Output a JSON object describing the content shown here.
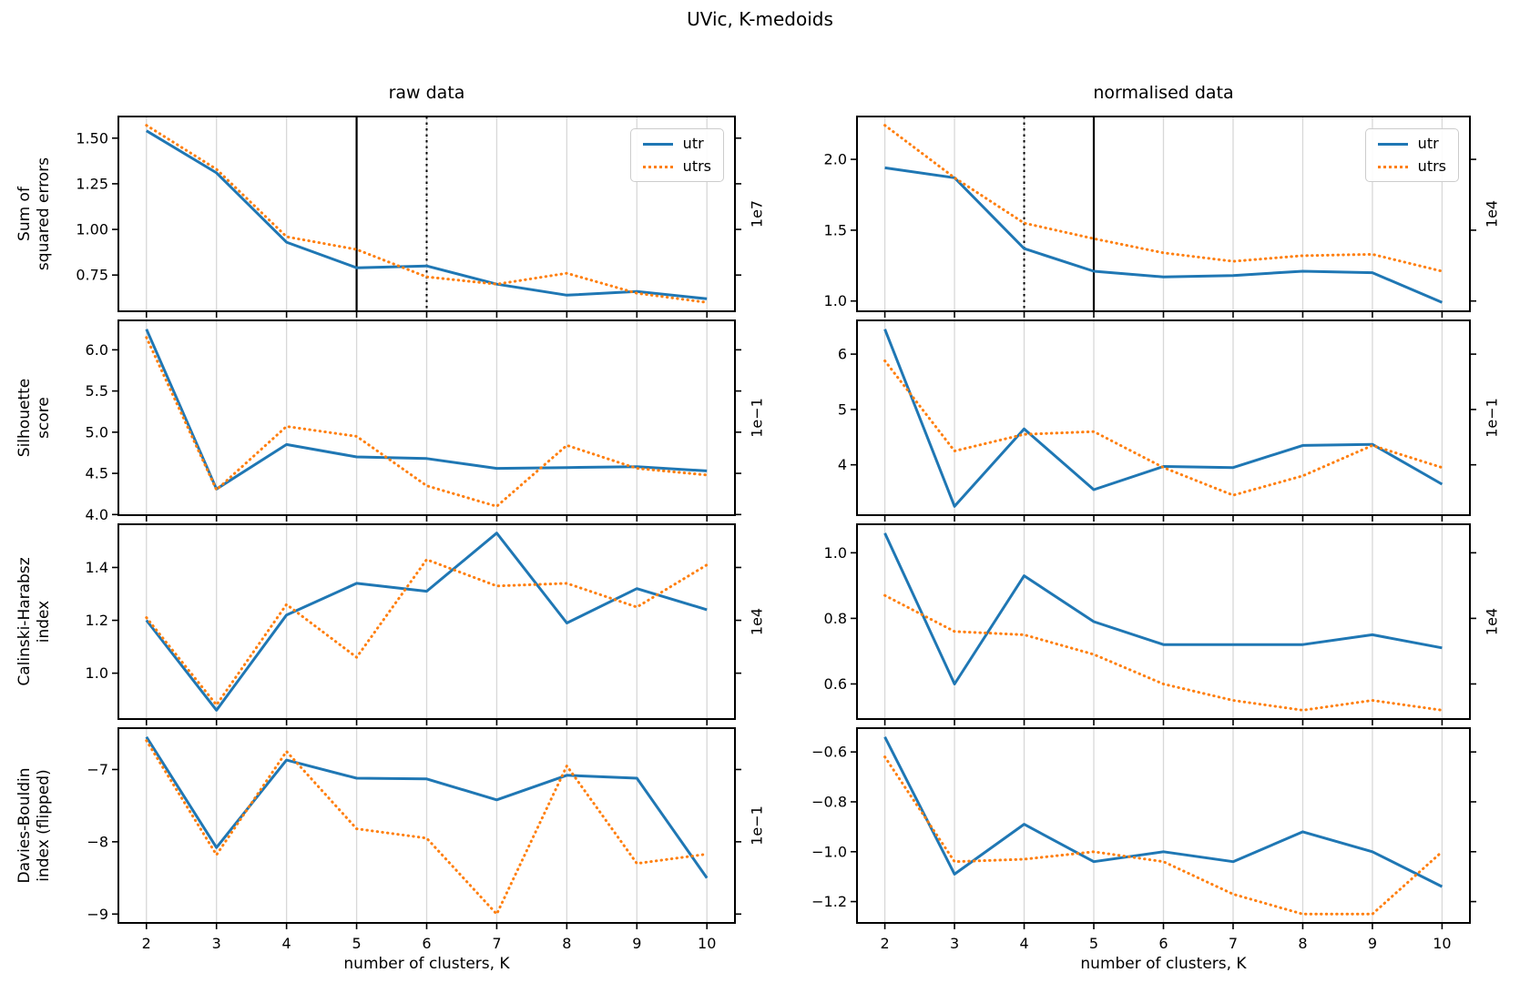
{
  "figure": {
    "suptitle": "UVic, K-medoids"
  },
  "columns": [
    {
      "title": "raw data",
      "xlabel": "number of clusters, K"
    },
    {
      "title": "normalised data",
      "xlabel": "number of clusters, K"
    }
  ],
  "rows": [
    {
      "ylabel_line1": "Sum of",
      "ylabel_line2": "squared errors"
    },
    {
      "ylabel_line1": "Silhouette",
      "ylabel_line2": "score"
    },
    {
      "ylabel_line1": "Calinski-Harabsz",
      "ylabel_line2": "index"
    },
    {
      "ylabel_line1": "Davies-Bouldin",
      "ylabel_line2": "index (flipped)"
    }
  ],
  "legend": {
    "entries": [
      {
        "label": "utr",
        "color": "#1f77b4",
        "style": "solid"
      },
      {
        "label": "utrs",
        "color": "#ff7f0e",
        "style": "dotted"
      }
    ]
  },
  "colors": {
    "utr": "#1f77b4",
    "utrs": "#ff7f0e",
    "grid": "#d8d8d8",
    "spine": "#000000",
    "vline": "#000000"
  },
  "chart_data": [
    {
      "name": "sse-raw",
      "row": 0,
      "col": 0,
      "type": "line",
      "title": "raw data",
      "ylabel": "Sum of squared errors",
      "x": [
        2,
        3,
        4,
        5,
        6,
        7,
        8,
        9,
        10
      ],
      "xlim": [
        1.6,
        10.4
      ],
      "series": [
        {
          "name": "utr",
          "values": [
            1.54,
            1.31,
            0.93,
            0.79,
            0.8,
            0.7,
            0.64,
            0.66,
            0.62
          ]
        },
        {
          "name": "utrs",
          "values": [
            1.57,
            1.33,
            0.96,
            0.89,
            0.74,
            0.7,
            0.76,
            0.65,
            0.6
          ]
        }
      ],
      "yticks": [
        0.75,
        1.0,
        1.25,
        1.5
      ],
      "ytick_labels": [
        "0.75",
        "1.00",
        "1.25",
        "1.50"
      ],
      "ylim": [
        0.5515,
        1.6185
      ],
      "offset_label": "1e7",
      "vlines": [
        {
          "x": 5,
          "style": "solid"
        },
        {
          "x": 6,
          "style": "dotted"
        }
      ],
      "show_legend": true,
      "show_xticklabels": false
    },
    {
      "name": "sse-normalised",
      "row": 0,
      "col": 1,
      "type": "line",
      "title": "normalised data",
      "ylabel": "Sum of squared errors",
      "x": [
        2,
        3,
        4,
        5,
        6,
        7,
        8,
        9,
        10
      ],
      "xlim": [
        1.6,
        10.4
      ],
      "series": [
        {
          "name": "utr",
          "values": [
            1.94,
            1.87,
            1.37,
            1.21,
            1.17,
            1.18,
            1.21,
            1.2,
            0.99
          ]
        },
        {
          "name": "utrs",
          "values": [
            2.24,
            1.87,
            1.55,
            1.44,
            1.34,
            1.28,
            1.32,
            1.33,
            1.21
          ]
        }
      ],
      "yticks": [
        1.0,
        1.5,
        2.0
      ],
      "ytick_labels": [
        "1.0",
        "1.5",
        "2.0"
      ],
      "ylim": [
        0.9275,
        2.3025
      ],
      "offset_label": "1e4",
      "vlines": [
        {
          "x": 4,
          "style": "dotted"
        },
        {
          "x": 5,
          "style": "solid"
        }
      ],
      "show_legend": true,
      "show_xticklabels": false
    },
    {
      "name": "silhouette-raw",
      "row": 1,
      "col": 0,
      "type": "line",
      "ylabel": "Silhouette score",
      "x": [
        2,
        3,
        4,
        5,
        6,
        7,
        8,
        9,
        10
      ],
      "xlim": [
        1.6,
        10.4
      ],
      "series": [
        {
          "name": "utr",
          "values": [
            6.25,
            4.31,
            4.85,
            4.7,
            4.68,
            4.56,
            4.57,
            4.58,
            4.53
          ]
        },
        {
          "name": "utrs",
          "values": [
            6.15,
            4.3,
            5.07,
            4.95,
            4.35,
            4.1,
            4.84,
            4.56,
            4.48
          ]
        }
      ],
      "yticks": [
        4.0,
        4.5,
        5.0,
        5.5,
        6.0
      ],
      "ytick_labels": [
        "4.0",
        "4.5",
        "5.0",
        "5.5",
        "6.0"
      ],
      "ylim": [
        3.9925,
        6.3575
      ],
      "offset_label": "1e−1",
      "vlines": [],
      "show_legend": false,
      "show_xticklabels": false
    },
    {
      "name": "silhouette-normalised",
      "row": 1,
      "col": 1,
      "type": "line",
      "ylabel": "Silhouette score",
      "x": [
        2,
        3,
        4,
        5,
        6,
        7,
        8,
        9,
        10
      ],
      "xlim": [
        1.6,
        10.4
      ],
      "series": [
        {
          "name": "utr",
          "values": [
            6.45,
            3.25,
            4.65,
            3.55,
            3.97,
            3.95,
            4.35,
            4.37,
            3.65
          ]
        },
        {
          "name": "utrs",
          "values": [
            5.88,
            4.25,
            4.55,
            4.6,
            3.95,
            3.45,
            3.8,
            4.35,
            3.95
          ]
        }
      ],
      "yticks": [
        4,
        5,
        6
      ],
      "ytick_labels": [
        "4",
        "5",
        "6"
      ],
      "ylim": [
        3.09,
        6.61
      ],
      "offset_label": "1e−1",
      "vlines": [],
      "show_legend": false,
      "show_xticklabels": false
    },
    {
      "name": "calinski-harabsz-raw",
      "row": 2,
      "col": 0,
      "type": "line",
      "ylabel": "Calinski-Harabsz index",
      "x": [
        2,
        3,
        4,
        5,
        6,
        7,
        8,
        9,
        10
      ],
      "xlim": [
        1.6,
        10.4
      ],
      "series": [
        {
          "name": "utr",
          "values": [
            1.2,
            0.86,
            1.22,
            1.34,
            1.31,
            1.53,
            1.19,
            1.32,
            1.24
          ]
        },
        {
          "name": "utrs",
          "values": [
            1.21,
            0.88,
            1.26,
            1.06,
            1.43,
            1.33,
            1.34,
            1.25,
            1.41
          ]
        }
      ],
      "yticks": [
        1.0,
        1.2,
        1.4
      ],
      "ytick_labels": [
        "1.0",
        "1.2",
        "1.4"
      ],
      "ylim": [
        0.8265,
        1.5635
      ],
      "offset_label": "1e4",
      "vlines": [],
      "show_legend": false,
      "show_xticklabels": false
    },
    {
      "name": "calinski-harabsz-normalised",
      "row": 2,
      "col": 1,
      "type": "line",
      "ylabel": "Calinski-Harabsz index",
      "x": [
        2,
        3,
        4,
        5,
        6,
        7,
        8,
        9,
        10
      ],
      "xlim": [
        1.6,
        10.4
      ],
      "series": [
        {
          "name": "utr",
          "values": [
            1.06,
            0.6,
            0.93,
            0.79,
            0.72,
            0.72,
            0.72,
            0.75,
            0.71
          ]
        },
        {
          "name": "utrs",
          "values": [
            0.87,
            0.76,
            0.75,
            0.69,
            0.6,
            0.55,
            0.52,
            0.55,
            0.52
          ]
        }
      ],
      "yticks": [
        0.6,
        0.8,
        1.0
      ],
      "ytick_labels": [
        "0.6",
        "0.8",
        "1.0"
      ],
      "ylim": [
        0.493,
        1.087
      ],
      "offset_label": "1e4",
      "vlines": [],
      "show_legend": false,
      "show_xticklabels": false
    },
    {
      "name": "davies-bouldin-raw",
      "row": 3,
      "col": 0,
      "type": "line",
      "ylabel": "Davies-Bouldin index (flipped)",
      "x": [
        2,
        3,
        4,
        5,
        6,
        7,
        8,
        9,
        10
      ],
      "xlim": [
        1.6,
        10.4
      ],
      "series": [
        {
          "name": "utr",
          "values": [
            -6.55,
            -8.08,
            -6.87,
            -7.12,
            -7.13,
            -7.42,
            -7.08,
            -7.12,
            -8.5
          ]
        },
        {
          "name": "utrs",
          "values": [
            -6.6,
            -8.18,
            -6.75,
            -7.82,
            -7.95,
            -9.0,
            -6.95,
            -8.3,
            -8.17
          ]
        }
      ],
      "yticks": [
        -9,
        -8,
        -7
      ],
      "ytick_labels": [
        "−9",
        "−8",
        "−7"
      ],
      "ylim": [
        -9.1225,
        -6.4275
      ],
      "offset_label": "1e−1",
      "vlines": [],
      "show_legend": false,
      "show_xticklabels": true
    },
    {
      "name": "davies-bouldin-normalised",
      "row": 3,
      "col": 1,
      "type": "line",
      "ylabel": "Davies-Bouldin index (flipped)",
      "x": [
        2,
        3,
        4,
        5,
        6,
        7,
        8,
        9,
        10
      ],
      "xlim": [
        1.6,
        10.4
      ],
      "series": [
        {
          "name": "utr",
          "values": [
            -0.54,
            -1.09,
            -0.89,
            -1.04,
            -1.0,
            -1.04,
            -0.92,
            -1.0,
            -1.14
          ]
        },
        {
          "name": "utrs",
          "values": [
            -0.62,
            -1.04,
            -1.03,
            -1.0,
            -1.04,
            -1.17,
            -1.25,
            -1.25,
            -1.0
          ]
        }
      ],
      "yticks": [
        -1.2,
        -1.0,
        -0.8,
        -0.6
      ],
      "ytick_labels": [
        "−1.2",
        "−1.0",
        "−0.8",
        "−0.6"
      ],
      "ylim": [
        -1.2855,
        -0.5045
      ],
      "offset_label": null,
      "vlines": [],
      "show_legend": false,
      "show_xticklabels": true
    }
  ]
}
